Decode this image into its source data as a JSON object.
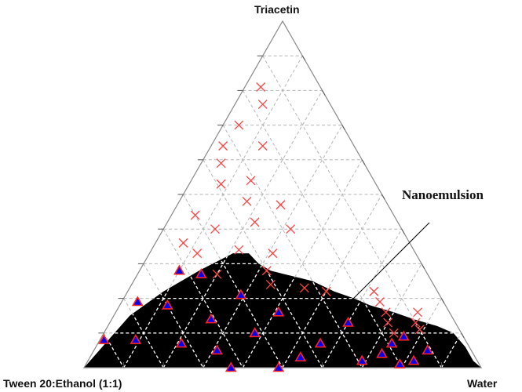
{
  "chart_data": {
    "type": "scatter",
    "subtype": "ternary",
    "title": "",
    "axes": {
      "top": "Triacetin",
      "left": "Tween 20:Ethanol (1:1)",
      "right": "Water"
    },
    "grid_step": 0.1,
    "grid": true,
    "annotation": "Nanoemulsion",
    "colors": {
      "grid": "#b5b5b5",
      "frame": "#888888",
      "cross": "#ff4444",
      "region": "#000000",
      "marker_fill": "#0000ee",
      "marker_edge": "#ff2222",
      "region_grid": "#ffffff"
    },
    "region_boundary": [
      {
        "water": 0.0,
        "oil": 0.0
      },
      {
        "water": 0.04,
        "oil": 0.15
      },
      {
        "water": 0.09,
        "oil": 0.22
      },
      {
        "water": 0.15,
        "oil": 0.28
      },
      {
        "water": 0.21,
        "oil": 0.33
      },
      {
        "water": 0.25,
        "oil": 0.33
      },
      {
        "water": 0.29,
        "oil": 0.3
      },
      {
        "water": 0.33,
        "oil": 0.28
      },
      {
        "water": 0.37,
        "oil": 0.27
      },
      {
        "water": 0.45,
        "oil": 0.25
      },
      {
        "water": 0.52,
        "oil": 0.22
      },
      {
        "water": 0.58,
        "oil": 0.2
      },
      {
        "water": 0.63,
        "oil": 0.18
      },
      {
        "water": 0.7,
        "oil": 0.16
      },
      {
        "water": 0.76,
        "oil": 0.14
      },
      {
        "water": 0.83,
        "oil": 0.12
      },
      {
        "water": 0.88,
        "oil": 0.1
      },
      {
        "water": 0.93,
        "oil": 0.06
      },
      {
        "water": 0.97,
        "oil": 0.02
      },
      {
        "water": 1.0,
        "oil": 0.0
      }
    ],
    "series": [
      {
        "marker": "x",
        "points": [
          {
            "water": 0.04,
            "oil": 0.81
          },
          {
            "water": 0.07,
            "oil": 0.76
          },
          {
            "water": 0.04,
            "oil": 0.7
          },
          {
            "water": 0.03,
            "oil": 0.64
          },
          {
            "water": 0.13,
            "oil": 0.64
          },
          {
            "water": 0.05,
            "oil": 0.59
          },
          {
            "water": 0.15,
            "oil": 0.54
          },
          {
            "water": 0.08,
            "oil": 0.53
          },
          {
            "water": 0.17,
            "oil": 0.48
          },
          {
            "water": 0.26,
            "oil": 0.47
          },
          {
            "water": 0.06,
            "oil": 0.44
          },
          {
            "water": 0.13,
            "oil": 0.4
          },
          {
            "water": 0.22,
            "oil": 0.42
          },
          {
            "water": 0.32,
            "oil": 0.4
          },
          {
            "water": 0.07,
            "oil": 0.36
          },
          {
            "water": 0.12,
            "oil": 0.33
          },
          {
            "water": 0.22,
            "oil": 0.34
          },
          {
            "water": 0.31,
            "oil": 0.33
          },
          {
            "water": 0.2,
            "oil": 0.27
          },
          {
            "water": 0.32,
            "oil": 0.28
          },
          {
            "water": 0.35,
            "oil": 0.24
          },
          {
            "water": 0.44,
            "oil": 0.23
          },
          {
            "water": 0.5,
            "oil": 0.22
          },
          {
            "water": 0.62,
            "oil": 0.22
          },
          {
            "water": 0.65,
            "oil": 0.19
          },
          {
            "water": 0.68,
            "oil": 0.16
          },
          {
            "water": 0.7,
            "oil": 0.13
          },
          {
            "water": 0.73,
            "oil": 0.1
          },
          {
            "water": 0.76,
            "oil": 0.16
          },
          {
            "water": 0.77,
            "oil": 0.13
          },
          {
            "water": 0.79,
            "oil": 0.11
          }
        ]
      },
      {
        "marker": "triangle",
        "points": [
          {
            "water": 0.1,
            "oil": 0.28
          },
          {
            "water": 0.16,
            "oil": 0.27
          },
          {
            "water": 0.04,
            "oil": 0.19
          },
          {
            "water": 0.12,
            "oil": 0.18
          },
          {
            "water": 0.01,
            "oil": 0.08
          },
          {
            "water": 0.09,
            "oil": 0.08
          },
          {
            "water": 0.29,
            "oil": 0.21
          },
          {
            "water": 0.25,
            "oil": 0.14
          },
          {
            "water": 0.41,
            "oil": 0.16
          },
          {
            "water": 0.38,
            "oil": 0.1
          },
          {
            "water": 0.21,
            "oil": 0.07
          },
          {
            "water": 0.31,
            "oil": 0.05
          },
          {
            "water": 0.37,
            "oil": 0.0
          },
          {
            "water": 0.49,
            "oil": 0.0
          },
          {
            "water": 0.53,
            "oil": 0.03
          },
          {
            "water": 0.56,
            "oil": 0.07
          },
          {
            "water": 0.6,
            "oil": 0.13
          },
          {
            "water": 0.69,
            "oil": 0.02
          },
          {
            "water": 0.73,
            "oil": 0.04
          },
          {
            "water": 0.74,
            "oil": 0.07
          },
          {
            "water": 0.76,
            "oil": 0.09
          },
          {
            "water": 0.79,
            "oil": 0.01
          },
          {
            "water": 0.82,
            "oil": 0.02
          },
          {
            "water": 0.84,
            "oil": 0.05
          }
        ]
      }
    ]
  }
}
